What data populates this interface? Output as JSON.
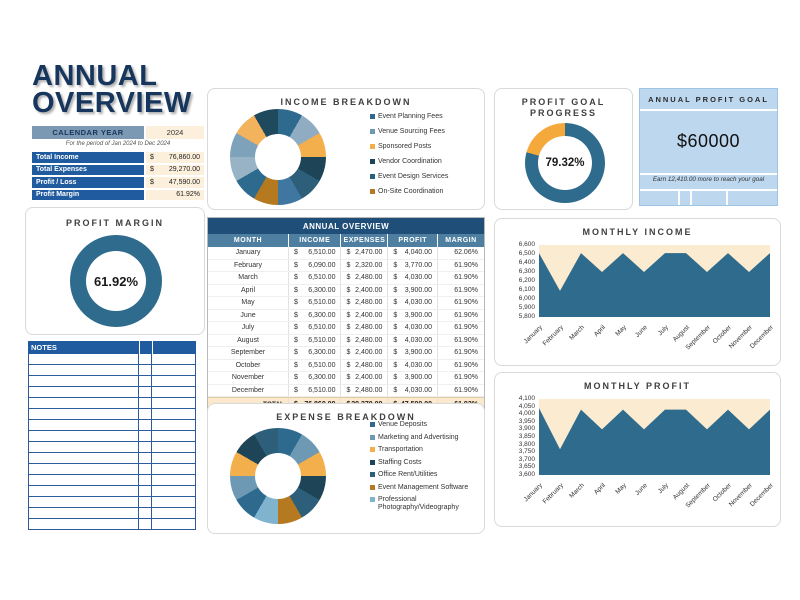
{
  "page_title": {
    "line1": "ANNUAL",
    "line2": "OVERVIEW"
  },
  "calendar": {
    "label": "CALENDAR YEAR",
    "year": "2024",
    "period_note": "For the period of Jan 2024 to Dec 2024"
  },
  "summary_rows": [
    {
      "label": "Total Income",
      "currency": "$",
      "value": "76,860.00"
    },
    {
      "label": "Total Expenses",
      "currency": "$",
      "value": "29,270.00"
    },
    {
      "label": "Profit / Loss",
      "currency": "$",
      "value": "47,590.00"
    },
    {
      "label": "Profit Margin",
      "currency": "",
      "value": "61.92%"
    }
  ],
  "profit_margin_card": {
    "title": "PROFIT MARGIN",
    "value": "61.92%",
    "ring_color": "#2E6B8D"
  },
  "notes": {
    "title": "NOTES",
    "rows": 16
  },
  "income_breakdown": {
    "title": "INCOME BREAKDOWN",
    "legend": [
      {
        "label": "Event Planning Fees",
        "color": "#2E6A8E"
      },
      {
        "label": "Venue Sourcing Fees",
        "color": "#6E99B5"
      },
      {
        "label": "Sponsored Posts",
        "color": "#F2AF4C"
      },
      {
        "label": "Vendor Coordination",
        "color": "#1E4557"
      },
      {
        "label": "Event Design Services",
        "color": "#2D5F7A"
      },
      {
        "label": "On-Site Coordination",
        "color": "#B5791F"
      }
    ],
    "segment_colors": [
      "#2E6A8E",
      "#8FACC2",
      "#F2AF4C",
      "#1E4557",
      "#2D5F7A",
      "#4077A0",
      "#B5791F",
      "#2E6A8E",
      "#98B3C6",
      "#7EA2BA",
      "#F2B35C",
      "#1F4A5E"
    ]
  },
  "main_table": {
    "title": "ANNUAL OVERVIEW",
    "columns": [
      "MONTH",
      "INCOME",
      "EXPENSES",
      "PROFIT",
      "MARGIN"
    ],
    "rows": [
      {
        "month": "January",
        "income": "6,510.00",
        "expenses": "2,470.00",
        "profit": "4,040.00",
        "margin": "62.06%"
      },
      {
        "month": "February",
        "income": "6,090.00",
        "expenses": "2,320.00",
        "profit": "3,770.00",
        "margin": "61.90%"
      },
      {
        "month": "March",
        "income": "6,510.00",
        "expenses": "2,480.00",
        "profit": "4,030.00",
        "margin": "61.90%"
      },
      {
        "month": "April",
        "income": "6,300.00",
        "expenses": "2,400.00",
        "profit": "3,900.00",
        "margin": "61.90%"
      },
      {
        "month": "May",
        "income": "6,510.00",
        "expenses": "2,480.00",
        "profit": "4,030.00",
        "margin": "61.90%"
      },
      {
        "month": "June",
        "income": "6,300.00",
        "expenses": "2,400.00",
        "profit": "3,900.00",
        "margin": "61.90%"
      },
      {
        "month": "July",
        "income": "6,510.00",
        "expenses": "2,480.00",
        "profit": "4,030.00",
        "margin": "61.90%"
      },
      {
        "month": "August",
        "income": "6,510.00",
        "expenses": "2,480.00",
        "profit": "4,030.00",
        "margin": "61.90%"
      },
      {
        "month": "September",
        "income": "6,300.00",
        "expenses": "2,400.00",
        "profit": "3,900.00",
        "margin": "61.90%"
      },
      {
        "month": "October",
        "income": "6,510.00",
        "expenses": "2,480.00",
        "profit": "4,030.00",
        "margin": "61.90%"
      },
      {
        "month": "November",
        "income": "6,300.00",
        "expenses": "2,400.00",
        "profit": "3,900.00",
        "margin": "61.90%"
      },
      {
        "month": "December",
        "income": "6,510.00",
        "expenses": "2,480.00",
        "profit": "4,030.00",
        "margin": "61.90%"
      }
    ],
    "total": {
      "label": "TOTAL",
      "income": "76,860.00",
      "expenses": "29,270.00",
      "profit": "47,590.00",
      "margin": "61.92%"
    },
    "currency_symbol": "$"
  },
  "expense_breakdown": {
    "title": "EXPENSE BREAKDOWN",
    "legend": [
      {
        "label": "Venue Deposits",
        "color": "#2E6A8E"
      },
      {
        "label": "Marketing and Advertising",
        "color": "#6E99B5"
      },
      {
        "label": "Transportation",
        "color": "#F2AF4C"
      },
      {
        "label": "Staffing Costs",
        "color": "#1E4557"
      },
      {
        "label": "Office Rent/Utilities",
        "color": "#2D5F7A"
      },
      {
        "label": "Event Management Software",
        "color": "#B5791F"
      },
      {
        "label": "Professional Photography/Videography",
        "color": "#7FB3CE"
      }
    ],
    "segment_colors": [
      "#2E6A8E",
      "#6E99B5",
      "#F2AF4C",
      "#1E4557",
      "#2D5F7A",
      "#B5791F",
      "#7FB3CE",
      "#2E6A8E",
      "#6E99B5",
      "#F2AF4C",
      "#1E4557",
      "#2D5F7A"
    ]
  },
  "profit_goal_card": {
    "title_line1": "PROFIT GOAL",
    "title_line2": "PROGRESS",
    "value": "79.32%",
    "percent": 79.32,
    "progress_color": "#2E6B8D",
    "remainder_color": "#F5A93B"
  },
  "annual_goal_card": {
    "title": "ANNUAL PROFIT GOAL",
    "amount": "$60000",
    "note": "Earn 12,410.00 more to reach your goal",
    "bg_color": "#BDD7EE"
  },
  "chart_data": [
    {
      "type": "area",
      "title": "MONTHLY INCOME",
      "categories": [
        "January",
        "February",
        "March",
        "April",
        "May",
        "June",
        "July",
        "August",
        "September",
        "October",
        "November",
        "December"
      ],
      "values": [
        6510,
        6090,
        6510,
        6300,
        6510,
        6300,
        6510,
        6510,
        6300,
        6510,
        6300,
        6510
      ],
      "ylim": [
        5800,
        6600
      ],
      "ytick_step": 100,
      "xlabel": "",
      "ylabel": "",
      "grid": false,
      "legend_position": "none",
      "fill_color": "#2E6B8C",
      "plot_bg": "#FBEBD0"
    },
    {
      "type": "area",
      "title": "MONTHLY PROFIT",
      "categories": [
        "January",
        "February",
        "March",
        "April",
        "May",
        "June",
        "July",
        "August",
        "September",
        "October",
        "November",
        "December"
      ],
      "values": [
        4040,
        3770,
        4030,
        3900,
        4030,
        3900,
        4030,
        4030,
        3900,
        4030,
        3900,
        4030
      ],
      "ylim": [
        3600,
        4100
      ],
      "ytick_step": 50,
      "xlabel": "",
      "ylabel": "",
      "grid": false,
      "legend_position": "none",
      "fill_color": "#2E6B8C",
      "plot_bg": "#FBEBD0"
    }
  ]
}
